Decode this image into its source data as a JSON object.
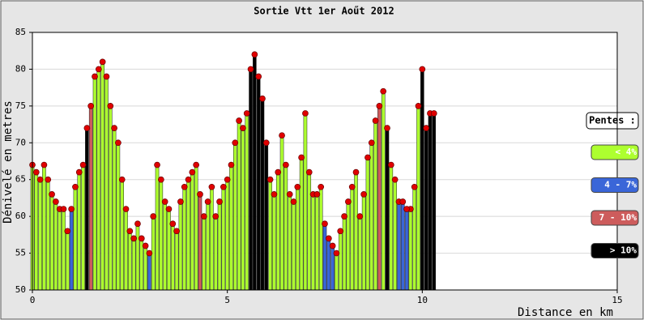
{
  "chart_data": {
    "type": "profile",
    "title": "Sortie Vtt 1er Aoűt 2012",
    "x_label": "Distance en km",
    "y_label": "Dénivelé en metres",
    "legend_title": "Pentes :",
    "xlim": [
      0,
      15
    ],
    "xticks": [
      0,
      5,
      10,
      15
    ],
    "ylim": [
      50,
      85
    ],
    "yticks": [
      50,
      55,
      60,
      65,
      70,
      75,
      80,
      85
    ],
    "grid": true,
    "legend": "right",
    "marker_color": "#e00000",
    "series": [
      {
        "name": "< 4%",
        "color": "#adff2f",
        "x": [
          0.0,
          0.1,
          0.2,
          0.3,
          0.4,
          0.5,
          0.6,
          0.7,
          0.8,
          0.9,
          1.1,
          1.2,
          1.3,
          1.6,
          1.7,
          1.8,
          1.9,
          2.0,
          2.1,
          2.2,
          2.3,
          2.4,
          2.5,
          2.6,
          2.7,
          2.8,
          2.9,
          3.1,
          3.2,
          3.3,
          3.4,
          3.5,
          3.6,
          3.7,
          3.8,
          3.9,
          4.0,
          4.1,
          4.2,
          4.4,
          4.5,
          4.6,
          4.7,
          4.8,
          4.9,
          5.0,
          5.1,
          5.2,
          5.3,
          5.4,
          5.5,
          6.1,
          6.2,
          6.3,
          6.4,
          6.5,
          6.6,
          6.7,
          6.8,
          6.9,
          7.0,
          7.1,
          7.2,
          7.3,
          7.4,
          7.8,
          7.9,
          8.0,
          8.1,
          8.2,
          8.3,
          8.4,
          8.5,
          8.6,
          8.7,
          8.8,
          9.0,
          9.2,
          9.3,
          9.7,
          9.8,
          9.9
        ],
        "values": [
          67,
          66,
          65,
          67,
          65,
          63,
          62,
          61,
          61,
          58,
          64,
          66,
          67,
          79,
          80,
          81,
          79,
          75,
          72,
          70,
          65,
          61,
          58,
          57,
          59,
          57,
          56,
          60,
          67,
          65,
          62,
          61,
          59,
          58,
          62,
          64,
          65,
          66,
          67,
          60,
          62,
          64,
          60,
          62,
          64,
          65,
          67,
          70,
          73,
          72,
          74,
          65,
          63,
          66,
          71,
          67,
          63,
          62,
          64,
          68,
          74,
          66,
          63,
          63,
          64,
          55,
          58,
          60,
          62,
          64,
          66,
          60,
          63,
          68,
          70,
          73,
          77,
          67,
          65,
          61,
          64,
          75
        ]
      },
      {
        "name": "4 - 7%",
        "color": "#3a66d8",
        "x": [
          1.0,
          3.0,
          7.5,
          7.6,
          7.7,
          9.4,
          9.5,
          9.6
        ],
        "values": [
          61,
          55,
          59,
          57,
          56,
          62,
          62,
          61
        ]
      },
      {
        "name": "7 - 10%",
        "color": "#cd5c5c",
        "x": [
          1.5,
          4.3,
          8.9
        ],
        "values": [
          75,
          63,
          75
        ]
      },
      {
        "name": "> 10%",
        "color": "#000000",
        "x": [
          1.4,
          5.6,
          5.7,
          5.8,
          5.9,
          6.0,
          9.1,
          10.0,
          10.1,
          10.2,
          10.3
        ],
        "values": [
          72,
          80,
          82,
          79,
          76,
          70,
          72,
          80,
          72,
          74,
          74
        ]
      }
    ]
  }
}
